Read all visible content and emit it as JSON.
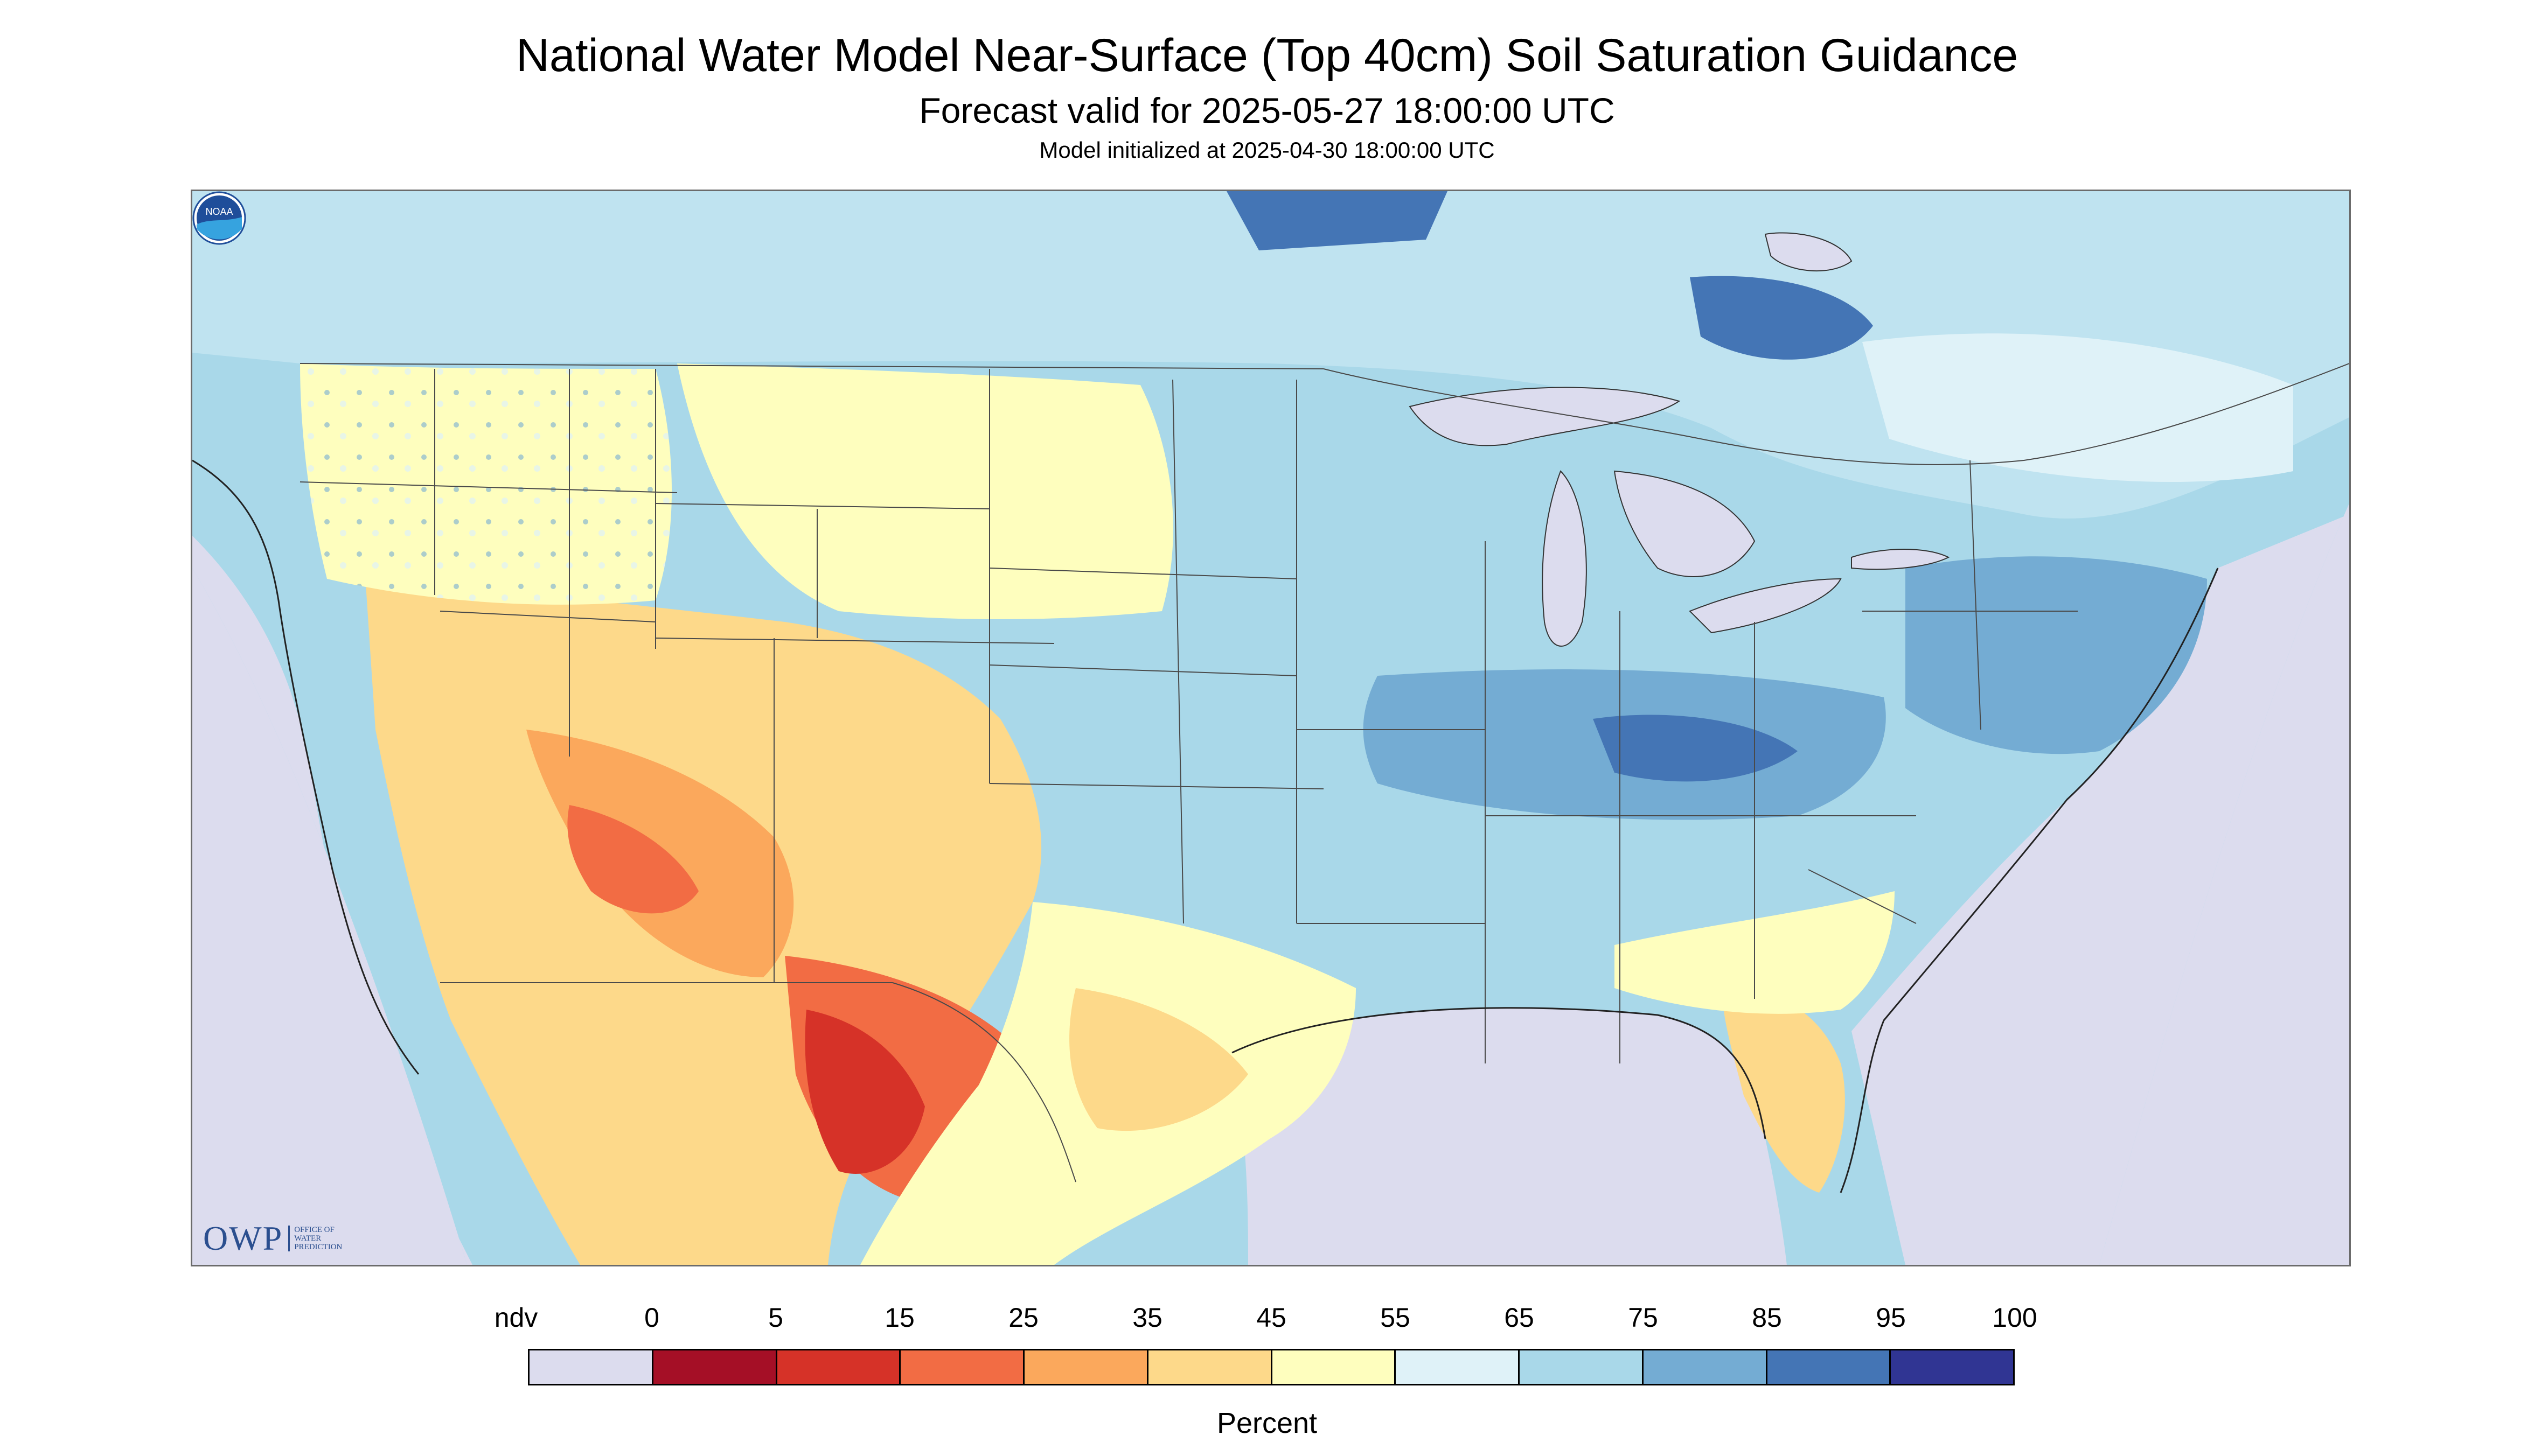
{
  "header": {
    "title": "National Water Model Near-Surface (Top 40cm) Soil Saturation Guidance",
    "forecast_valid": "Forecast valid for 2025-05-27 18:00:00 UTC",
    "model_initialized": "Model initialized at 2025-04-30 18:00:00 UTC"
  },
  "logos": {
    "owp_mark": "OWP",
    "owp_text": "OFFICE OF\nWATER\nPREDICTION",
    "noaa_text": "NOAA"
  },
  "legend": {
    "title": "Percent",
    "labels": [
      "ndv",
      "0",
      "5",
      "15",
      "25",
      "35",
      "45",
      "55",
      "65",
      "75",
      "85",
      "95",
      "100"
    ],
    "colors": [
      "#dcdcee",
      "#a50f26",
      "#d63228",
      "#f26c44",
      "#fba85c",
      "#fdd98a",
      "#fefebe",
      "#dff2f8",
      "#a9d8e9",
      "#74acd3",
      "#4475b5",
      "#303593"
    ]
  },
  "map": {
    "colors": {
      "nodata": "#dcdcee",
      "water": "#dcdcee",
      "canada_base": "#bfe3f0",
      "conus_base": "#a9d8e9",
      "wet": "#74acd3",
      "very_wet": "#4475b5",
      "moist": "#dff2f8",
      "neutral": "#fefebe",
      "dryish": "#fdd98a",
      "dry": "#fba85c",
      "very_dry": "#f26c44",
      "extreme_dry": "#d63228"
    }
  }
}
